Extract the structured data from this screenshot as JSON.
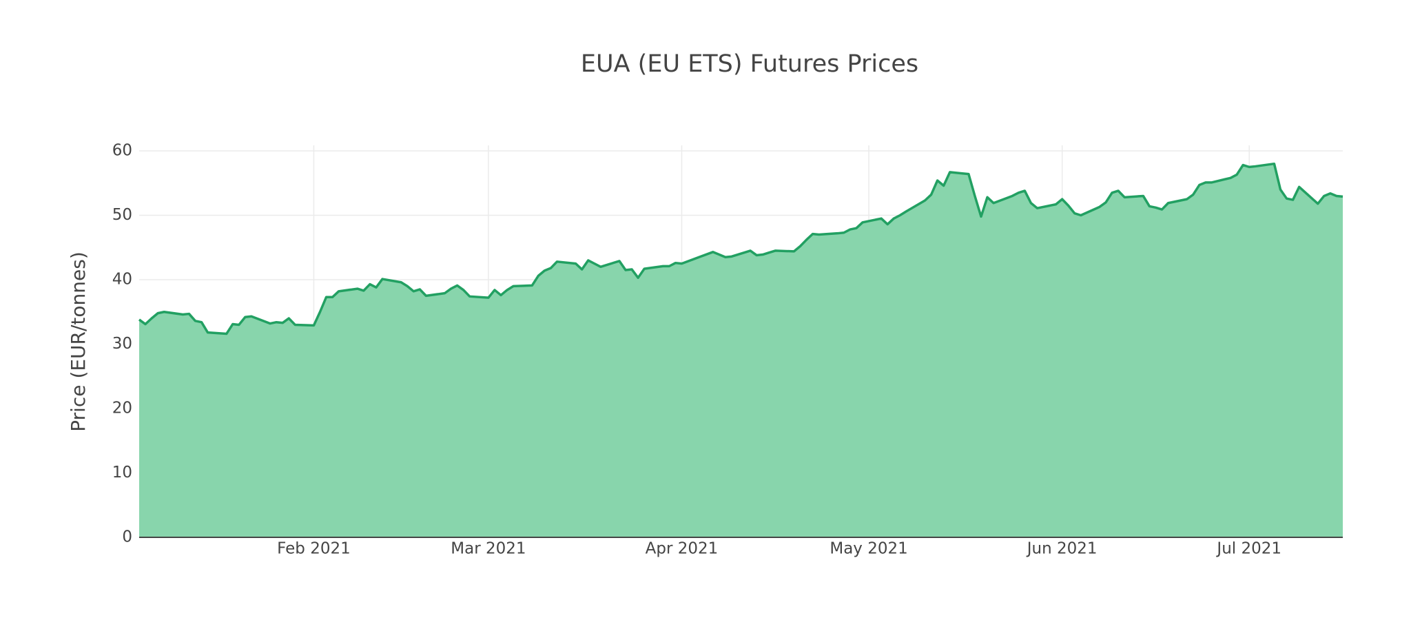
{
  "chart_data": {
    "type": "area",
    "title": "EUA (EU ETS) Futures Prices",
    "y_label": "Price (EUR/tonnes)",
    "x": [
      "2021-01-04",
      "2021-01-05",
      "2021-01-06",
      "2021-01-07",
      "2021-01-08",
      "2021-01-11",
      "2021-01-12",
      "2021-01-13",
      "2021-01-14",
      "2021-01-15",
      "2021-01-18",
      "2021-01-19",
      "2021-01-20",
      "2021-01-21",
      "2021-01-22",
      "2021-01-25",
      "2021-01-26",
      "2021-01-27",
      "2021-01-28",
      "2021-01-29",
      "2021-02-01",
      "2021-02-02",
      "2021-02-03",
      "2021-02-04",
      "2021-02-05",
      "2021-02-08",
      "2021-02-09",
      "2021-02-10",
      "2021-02-11",
      "2021-02-12",
      "2021-02-15",
      "2021-02-16",
      "2021-02-17",
      "2021-02-18",
      "2021-02-19",
      "2021-02-22",
      "2021-02-23",
      "2021-02-24",
      "2021-02-25",
      "2021-02-26",
      "2021-03-01",
      "2021-03-02",
      "2021-03-03",
      "2021-03-04",
      "2021-03-05",
      "2021-03-08",
      "2021-03-09",
      "2021-03-10",
      "2021-03-11",
      "2021-03-12",
      "2021-03-15",
      "2021-03-16",
      "2021-03-17",
      "2021-03-18",
      "2021-03-19",
      "2021-03-22",
      "2021-03-23",
      "2021-03-24",
      "2021-03-25",
      "2021-03-26",
      "2021-03-29",
      "2021-03-30",
      "2021-03-31",
      "2021-04-01",
      "2021-04-06",
      "2021-04-07",
      "2021-04-08",
      "2021-04-09",
      "2021-04-12",
      "2021-04-13",
      "2021-04-14",
      "2021-04-15",
      "2021-04-16",
      "2021-04-19",
      "2021-04-20",
      "2021-04-21",
      "2021-04-22",
      "2021-04-23",
      "2021-04-26",
      "2021-04-27",
      "2021-04-28",
      "2021-04-29",
      "2021-04-30",
      "2021-05-03",
      "2021-05-04",
      "2021-05-05",
      "2021-05-06",
      "2021-05-07",
      "2021-05-10",
      "2021-05-11",
      "2021-05-12",
      "2021-05-13",
      "2021-05-14",
      "2021-05-17",
      "2021-05-18",
      "2021-05-19",
      "2021-05-20",
      "2021-05-21",
      "2021-05-24",
      "2021-05-25",
      "2021-05-26",
      "2021-05-27",
      "2021-05-28",
      "2021-05-31",
      "2021-06-01",
      "2021-06-02",
      "2021-06-03",
      "2021-06-04",
      "2021-06-07",
      "2021-06-08",
      "2021-06-09",
      "2021-06-10",
      "2021-06-11",
      "2021-06-14",
      "2021-06-15",
      "2021-06-16",
      "2021-06-17",
      "2021-06-18",
      "2021-06-21",
      "2021-06-22",
      "2021-06-23",
      "2021-06-24",
      "2021-06-25",
      "2021-06-28",
      "2021-06-29",
      "2021-06-30",
      "2021-07-01",
      "2021-07-02",
      "2021-07-05",
      "2021-07-06",
      "2021-07-07",
      "2021-07-08",
      "2021-07-09",
      "2021-07-12",
      "2021-07-13",
      "2021-07-14",
      "2021-07-15",
      "2021-07-16"
    ],
    "series": [
      {
        "line_color": "#22a062",
        "fill_color": "#86d4aa",
        "values": [
          33.8,
          33.1,
          34.0,
          34.8,
          35.0,
          34.6,
          34.7,
          33.6,
          33.4,
          31.8,
          31.6,
          33.1,
          33.0,
          34.2,
          34.3,
          33.2,
          33.4,
          33.3,
          34.0,
          33.0,
          32.9,
          35.0,
          37.3,
          37.3,
          38.2,
          38.6,
          38.3,
          39.3,
          38.8,
          40.1,
          39.6,
          39.0,
          38.2,
          38.5,
          37.5,
          37.9,
          38.6,
          39.1,
          38.4,
          37.4,
          37.2,
          38.4,
          37.6,
          38.4,
          39.0,
          39.1,
          40.6,
          41.4,
          41.8,
          42.8,
          42.5,
          41.6,
          43.0,
          42.5,
          42.0,
          42.9,
          41.5,
          41.6,
          40.3,
          41.7,
          42.1,
          42.1,
          42.6,
          42.5,
          44.3,
          43.9,
          43.5,
          43.6,
          44.5,
          43.8,
          43.9,
          44.2,
          44.5,
          44.4,
          45.2,
          46.2,
          47.1,
          47.0,
          47.2,
          47.3,
          47.8,
          48.0,
          48.9,
          49.5,
          48.6,
          49.5,
          50.0,
          50.6,
          52.3,
          53.2,
          55.4,
          54.6,
          56.7,
          56.4,
          53.0,
          49.8,
          52.8,
          51.9,
          53.0,
          53.5,
          53.8,
          51.9,
          51.1,
          51.7,
          52.5,
          51.5,
          50.3,
          50.0,
          51.3,
          52.0,
          53.5,
          53.8,
          52.8,
          53.0,
          51.4,
          51.2,
          50.9,
          51.9,
          52.5,
          53.2,
          54.7,
          55.1,
          55.1,
          55.8,
          56.3,
          57.8,
          57.5,
          57.6,
          58.0,
          54.0,
          52.6,
          52.4,
          54.4,
          51.8,
          53.0,
          53.4,
          53.0,
          52.9
        ]
      }
    ],
    "xlim": [
      "2021-01-04",
      "2021-07-16"
    ],
    "xticks": [
      {
        "value": "2021-02-01",
        "label": "Feb 2021"
      },
      {
        "value": "2021-03-01",
        "label": "Mar 2021"
      },
      {
        "value": "2021-04-01",
        "label": "Apr 2021"
      },
      {
        "value": "2021-05-01",
        "label": "May 2021"
      },
      {
        "value": "2021-06-01",
        "label": "Jun 2021"
      },
      {
        "value": "2021-07-01",
        "label": "Jul 2021"
      }
    ],
    "ylim": [
      0,
      60
    ],
    "yticks": [
      0,
      10,
      20,
      30,
      40,
      50,
      60
    ],
    "grid": true
  }
}
